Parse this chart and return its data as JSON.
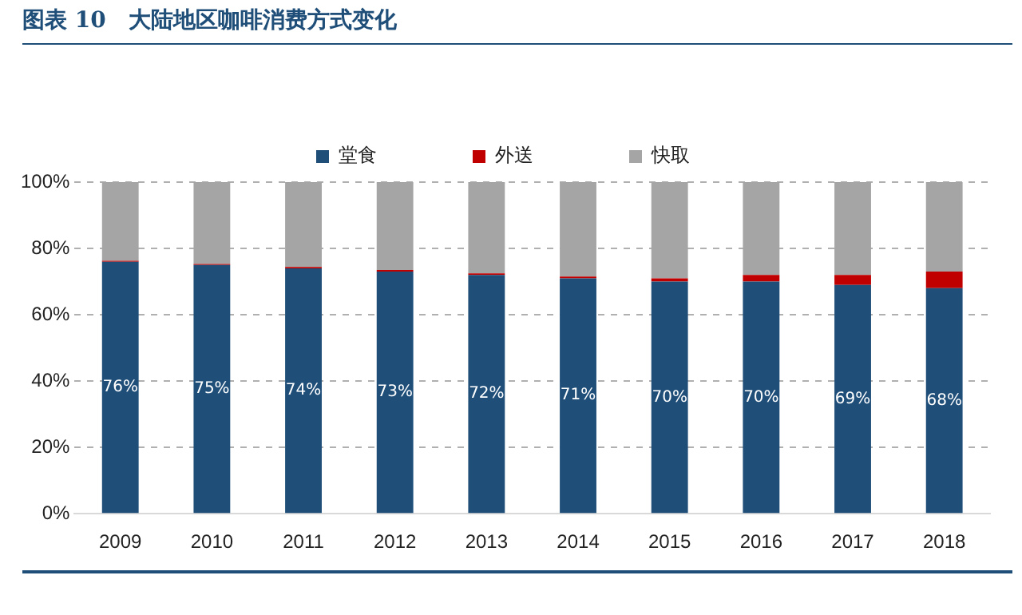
{
  "chart_data": {
    "type": "bar",
    "title": "图表 10　大陆地区咖啡消费方式变化",
    "stacked": true,
    "categories": [
      "2009",
      "2010",
      "2011",
      "2012",
      "2013",
      "2014",
      "2015",
      "2016",
      "2017",
      "2018"
    ],
    "series": [
      {
        "name": "堂食",
        "color": "#1f4e79",
        "values": [
          76,
          75,
          74,
          73,
          72,
          71,
          70,
          70,
          69,
          68
        ],
        "value_labels": [
          "76%",
          "75%",
          "74%",
          "73%",
          "72%",
          "71%",
          "70%",
          "70%",
          "69%",
          "68%"
        ]
      },
      {
        "name": "外送",
        "color": "#c00000",
        "values": [
          0.3,
          0.3,
          0.4,
          0.5,
          0.5,
          0.5,
          1,
          2,
          3,
          5
        ]
      },
      {
        "name": "快取",
        "color": "#a5a5a5",
        "values": [
          23.7,
          24.7,
          25.6,
          26.5,
          27.5,
          28.5,
          29,
          28,
          28,
          27
        ]
      }
    ],
    "ylim": [
      0,
      100
    ],
    "yticks": [
      {
        "value": 0,
        "label": "0%"
      },
      {
        "value": 20,
        "label": "20%"
      },
      {
        "value": 40,
        "label": "40%"
      },
      {
        "value": 60,
        "label": "60%"
      },
      {
        "value": 80,
        "label": "80%"
      },
      {
        "value": 100,
        "label": "100%"
      }
    ],
    "grid": "y",
    "legend": "top"
  }
}
